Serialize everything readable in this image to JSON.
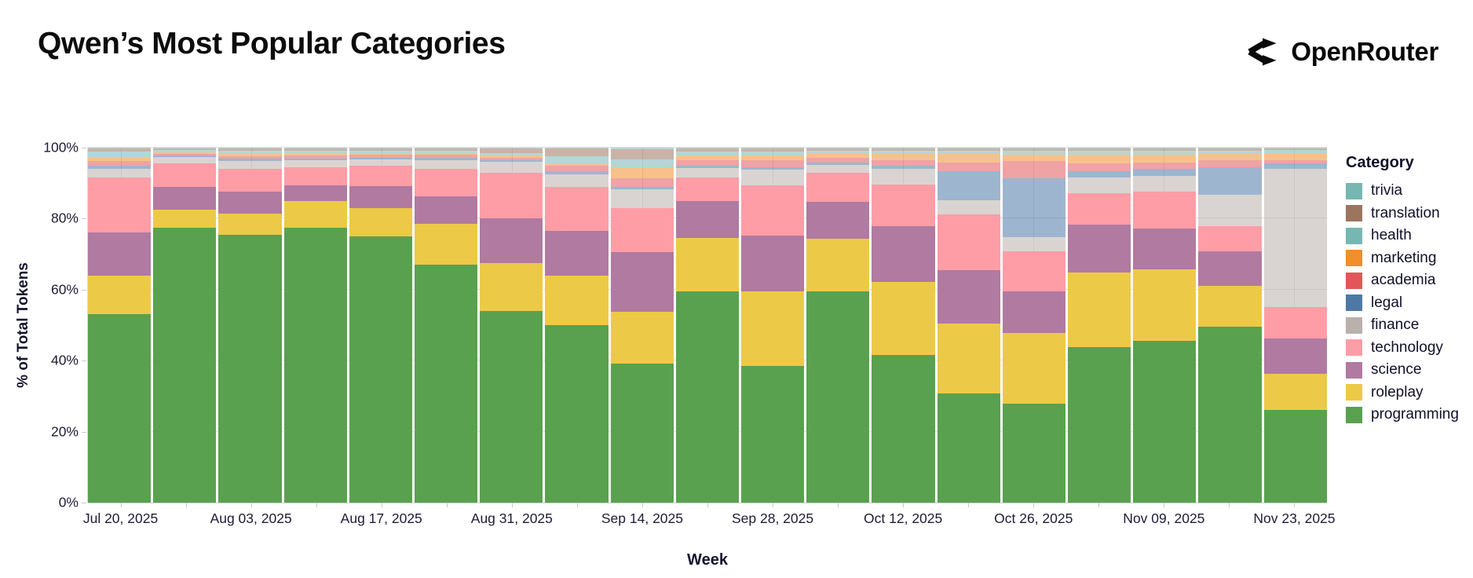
{
  "header": {
    "title": "Qwen’s Most Popular Categories",
    "brand": {
      "name": "OpenRouter",
      "icon": "openrouter-fork-icon",
      "color": "#0a0a0a"
    }
  },
  "chart_data": {
    "type": "bar",
    "variant": "stacked-100-percent",
    "title": "Qwen’s Most Popular Categories",
    "xlabel": "Week",
    "ylabel": "% of Total Tokens",
    "ylim": [
      0,
      100
    ],
    "grid": true,
    "legend_position": "right",
    "legend_title": "Category",
    "y_tick_labels": [
      "0%",
      "20%",
      "40%",
      "60%",
      "80%",
      "100%"
    ],
    "x": [
      "Jul 20",
      "Jul 27",
      "Aug 03",
      "Aug 10",
      "Aug 17",
      "Aug 24",
      "Aug 31",
      "Sep 07",
      "Sep 14",
      "Sep 21",
      "Sep 28",
      "Oct 05",
      "Oct 12",
      "Oct 19",
      "Oct 26",
      "Nov 02",
      "Nov 09",
      "Nov 16",
      "Nov 23"
    ],
    "x_tick_labels": [
      "Jul 20, 2025",
      "Aug 03, 2025",
      "Aug 17, 2025",
      "Aug 31, 2025",
      "Sep 14, 2025",
      "Sep 28, 2025",
      "Oct 12, 2025",
      "Oct 26, 2025",
      "Nov 09, 2025",
      "Nov 23, 2025"
    ],
    "x_tick_indices": [
      0,
      2,
      4,
      6,
      8,
      10,
      12,
      14,
      16,
      18
    ],
    "stack_note": "series listed top-of-stack first; values are percent of total tokens per week",
    "series": [
      {
        "name": "trivia",
        "color": "#76B7B2",
        "fill": "rgba(118,183,178,0.55)",
        "values": [
          0.3,
          0.3,
          0.3,
          0.3,
          0.3,
          0.3,
          0.3,
          0.3,
          0.5,
          0.3,
          0.3,
          0.3,
          0.3,
          0.3,
          0.3,
          0.3,
          0.3,
          0.3,
          0.3
        ]
      },
      {
        "name": "translation",
        "color": "#9C755F",
        "fill": "rgba(156,117,95,0.55)",
        "values": [
          0.8,
          0.4,
          0.6,
          0.6,
          0.5,
          0.5,
          1.2,
          2.1,
          2.9,
          0.8,
          0.7,
          0.6,
          0.5,
          0.5,
          0.5,
          0.6,
          0.6,
          0.5,
          0.4
        ]
      },
      {
        "name": "health",
        "color": "#76B7B2",
        "fill": "rgba(118,183,178,0.55)",
        "values": [
          1.6,
          0.6,
          0.9,
          0.9,
          0.7,
          0.8,
          0.8,
          2.2,
          2.2,
          1.2,
          1.2,
          0.9,
          0.9,
          0.9,
          1.1,
          1.1,
          1.0,
          0.9,
          0.8
        ]
      },
      {
        "name": "marketing",
        "color": "#F28E2B",
        "fill": "rgba(242,142,43,0.55)",
        "values": [
          1.0,
          0.4,
          0.6,
          0.5,
          0.4,
          0.4,
          0.5,
          0.6,
          3.1,
          1.2,
          1.4,
          1.1,
          1.8,
          2.4,
          1.8,
          2.4,
          2.2,
          1.8,
          2.0
        ]
      },
      {
        "name": "academia",
        "color": "#E15759",
        "fill": "rgba(225,87,89,0.55)",
        "values": [
          1.5,
          0.6,
          0.8,
          0.8,
          0.9,
          0.9,
          0.8,
          1.5,
          2.4,
          1.5,
          2.0,
          1.2,
          1.6,
          2.6,
          4.9,
          2.2,
          1.8,
          2.0,
          1.0
        ]
      },
      {
        "name": "legal",
        "color": "#4E79A7",
        "fill": "rgba(78,121,167,0.55)",
        "values": [
          0.7,
          0.4,
          0.5,
          0.5,
          0.6,
          0.6,
          0.5,
          0.8,
          0.7,
          0.7,
          0.7,
          0.8,
          0.9,
          8.2,
          16.7,
          1.9,
          2.0,
          7.8,
          1.5
        ]
      },
      {
        "name": "finance",
        "color": "#BAB0AC",
        "fill": "rgba(186,176,172,0.55)",
        "values": [
          2.6,
          1.8,
          2.3,
          2.0,
          1.6,
          2.5,
          2.9,
          3.6,
          5.3,
          2.8,
          4.4,
          2.2,
          4.4,
          4.0,
          4.0,
          4.4,
          4.4,
          8.9,
          38.9
        ]
      },
      {
        "name": "technology",
        "color": "#FF9DA7",
        "fill": "#FF9DA7",
        "values": [
          15.5,
          6.5,
          6.5,
          5.0,
          5.8,
          7.7,
          13.0,
          12.4,
          12.3,
          6.5,
          14.2,
          8.1,
          11.8,
          15.6,
          11.1,
          8.9,
          10.4,
          7.1,
          8.9
        ]
      },
      {
        "name": "science",
        "color": "#B07AA1",
        "fill": "#B07AA1",
        "values": [
          12.0,
          6.5,
          6.0,
          4.4,
          6.2,
          7.8,
          12.5,
          12.5,
          16.9,
          10.5,
          15.5,
          10.4,
          15.6,
          15.1,
          11.8,
          13.3,
          11.7,
          9.6,
          10.0
        ]
      },
      {
        "name": "roleplay",
        "color": "#EDC948",
        "fill": "#EDC948",
        "values": [
          11.0,
          5.0,
          6.0,
          7.5,
          8.0,
          11.5,
          13.5,
          14.0,
          14.5,
          15.0,
          21.2,
          14.8,
          20.7,
          19.7,
          20.0,
          21.1,
          20.0,
          11.5,
          10.2
        ]
      },
      {
        "name": "programming",
        "color": "#59A14F",
        "fill": "#59A14F",
        "values": [
          53.0,
          77.5,
          75.5,
          77.5,
          75.0,
          67.0,
          54.0,
          50.0,
          39.2,
          59.5,
          38.4,
          59.6,
          41.5,
          30.7,
          27.8,
          43.8,
          45.6,
          49.6,
          26.0
        ]
      }
    ]
  }
}
